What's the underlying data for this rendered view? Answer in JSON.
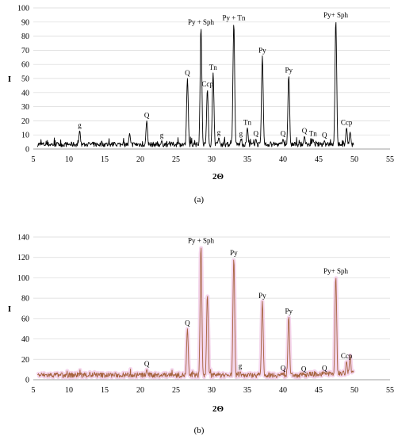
{
  "chart_data": [
    {
      "type": "line",
      "caption": "(a)",
      "xlabel": "2Θ",
      "ylabel": "I",
      "xlim": [
        5,
        55
      ],
      "ylim": [
        0,
        100
      ],
      "xticks": [
        5,
        10,
        15,
        20,
        25,
        30,
        35,
        40,
        45,
        50,
        55
      ],
      "yticks": [
        0,
        10,
        20,
        30,
        40,
        50,
        60,
        70,
        80,
        90,
        100
      ],
      "line_color": "#000000",
      "grid": "horizontal",
      "peaks": [
        {
          "x": 11.5,
          "y": 13,
          "label": "g"
        },
        {
          "x": 18.5,
          "y": 11,
          "label": ""
        },
        {
          "x": 20.9,
          "y": 20,
          "label": "Q"
        },
        {
          "x": 23.0,
          "y": 6,
          "label": "g"
        },
        {
          "x": 26.6,
          "y": 50,
          "label": "Q"
        },
        {
          "x": 28.5,
          "y": 86,
          "label": "Py + Sph"
        },
        {
          "x": 29.4,
          "y": 42,
          "label": "Ccp"
        },
        {
          "x": 30.2,
          "y": 54,
          "label": "Tn"
        },
        {
          "x": 31.0,
          "y": 8,
          "label": "g"
        },
        {
          "x": 33.1,
          "y": 89,
          "label": "Py + Tn"
        },
        {
          "x": 34.1,
          "y": 7,
          "label": "g"
        },
        {
          "x": 35.0,
          "y": 15,
          "label": "Tn"
        },
        {
          "x": 36.2,
          "y": 7,
          "label": "Q"
        },
        {
          "x": 37.1,
          "y": 66,
          "label": "Py"
        },
        {
          "x": 40.0,
          "y": 7,
          "label": "Q"
        },
        {
          "x": 40.8,
          "y": 52,
          "label": "Py"
        },
        {
          "x": 43.0,
          "y": 9,
          "label": "Q"
        },
        {
          "x": 44.2,
          "y": 7,
          "label": "Tn"
        },
        {
          "x": 45.8,
          "y": 6,
          "label": "Q"
        },
        {
          "x": 47.4,
          "y": 91,
          "label": "Py+ Sph"
        },
        {
          "x": 48.9,
          "y": 15,
          "label": "Ccp"
        },
        {
          "x": 49.4,
          "y": 12,
          "label": ""
        }
      ]
    },
    {
      "type": "line",
      "caption": "(b)",
      "xlabel": "2Θ",
      "ylabel": "I",
      "xlim": [
        5,
        55
      ],
      "ylim": [
        0,
        140
      ],
      "xticks": [
        5,
        10,
        15,
        20,
        25,
        30,
        35,
        40,
        45,
        50,
        55
      ],
      "yticks": [
        0,
        20,
        40,
        60,
        80,
        100,
        120,
        140
      ],
      "line_color": "#a5623c",
      "halo_color": "#f3cce8",
      "grid": "horizontal",
      "peaks": [
        {
          "x": 20.9,
          "y": 10,
          "label": "Q"
        },
        {
          "x": 26.6,
          "y": 50,
          "label": "Q"
        },
        {
          "x": 28.5,
          "y": 131,
          "label": "Py + Sph"
        },
        {
          "x": 29.4,
          "y": 83,
          "label": ""
        },
        {
          "x": 33.1,
          "y": 119,
          "label": "Py"
        },
        {
          "x": 34.0,
          "y": 8,
          "label": "g"
        },
        {
          "x": 37.1,
          "y": 77,
          "label": "Py"
        },
        {
          "x": 40.0,
          "y": 6,
          "label": "Q"
        },
        {
          "x": 40.8,
          "y": 62,
          "label": "Py"
        },
        {
          "x": 42.9,
          "y": 5,
          "label": "Q"
        },
        {
          "x": 45.8,
          "y": 6,
          "label": "Q"
        },
        {
          "x": 47.4,
          "y": 101,
          "label": "Py+ Sph"
        },
        {
          "x": 48.9,
          "y": 18,
          "label": "Ccp"
        },
        {
          "x": 49.4,
          "y": 24,
          "label": ""
        }
      ]
    }
  ]
}
